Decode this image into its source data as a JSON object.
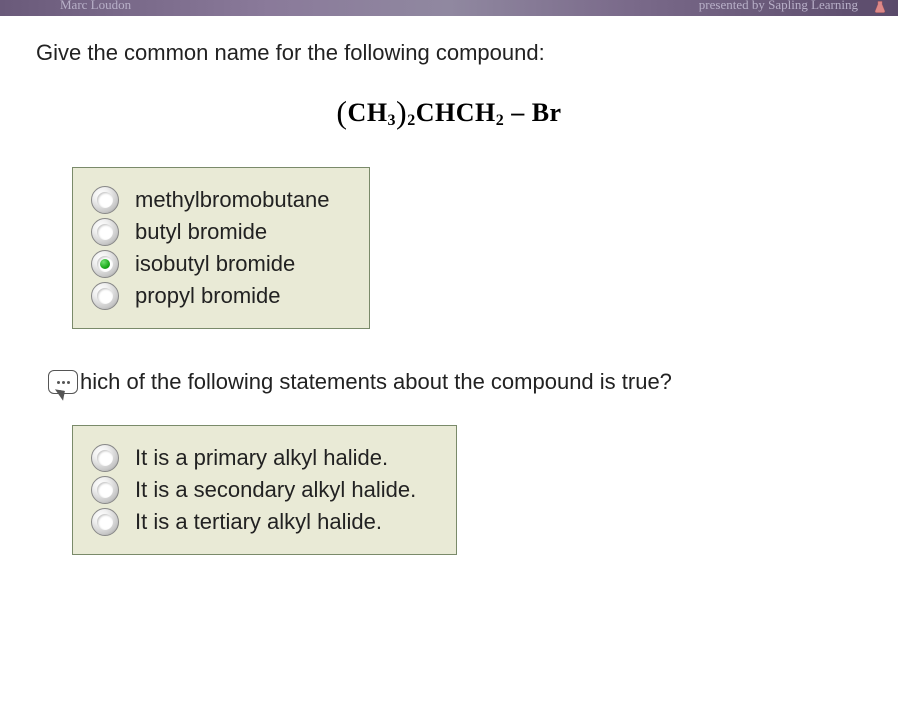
{
  "header": {
    "left_text": "Marc Loudon",
    "right_text": "presented by Sapling Learning"
  },
  "question1": {
    "prompt": "Give the common name for the following compound:",
    "formula": {
      "group1": "CH",
      "sub1": "3",
      "outer_sub": "2",
      "group2": "CHCH",
      "sub2": "2",
      "tail": " – Br"
    },
    "options": [
      {
        "label": "methylbromobutane",
        "selected": false
      },
      {
        "label": "butyl bromide",
        "selected": false
      },
      {
        "label": "isobutyl bromide",
        "selected": true
      },
      {
        "label": "propyl bromide",
        "selected": false
      }
    ]
  },
  "question2": {
    "prompt_fragment": "hich of the following statements about the compound is true?",
    "options": [
      {
        "label": "It is a primary alkyl halide.",
        "selected": false
      },
      {
        "label": "It is a secondary alkyl halide.",
        "selected": false
      },
      {
        "label": "It is a tertiary alkyl halide.",
        "selected": false
      }
    ]
  },
  "style": {
    "option_box_bg": "#e9ead6",
    "option_box_border": "#7a8a6a",
    "radio_selected_color": "#1aaa1a"
  }
}
